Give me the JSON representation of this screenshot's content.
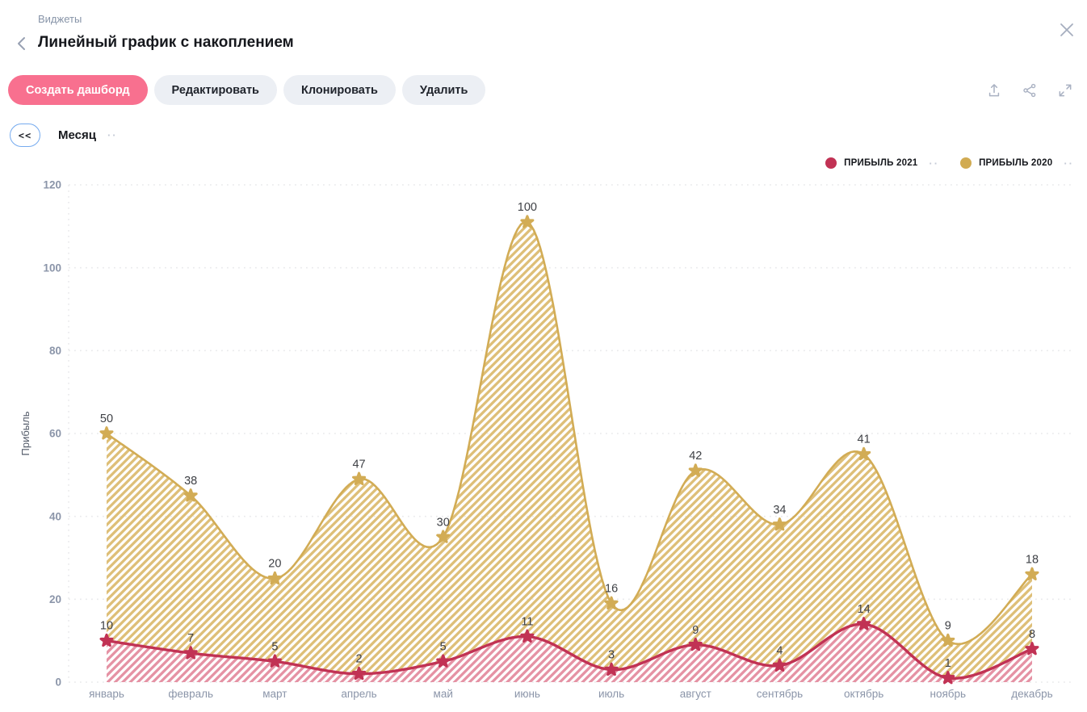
{
  "header": {
    "breadcrumb": "Виджеты",
    "title": "Линейный график с накоплением"
  },
  "toolbar": {
    "create_label": "Создать дашборд",
    "edit_label": "Редактировать",
    "clone_label": "Клонировать",
    "delete_label": "Удалить",
    "accent_color": "#F8708F"
  },
  "filter": {
    "collapse_label": "<<",
    "name": "Месяц",
    "menu_dots": "··"
  },
  "legend": {
    "items": [
      {
        "label": "ПРИБЫЛЬ 2021",
        "color": "#C13254",
        "menu_dots": "··"
      },
      {
        "label": "ПРИБЫЛЬ 2020",
        "color": "#D1AB52",
        "menu_dots": "··"
      }
    ]
  },
  "chart_data": {
    "type": "area",
    "stacked": true,
    "title": "",
    "xlabel": "",
    "ylabel": "Прибыль",
    "categories": [
      "январь",
      "февраль",
      "март",
      "апрель",
      "май",
      "июнь",
      "июль",
      "август",
      "сентябрь",
      "октябрь",
      "ноябрь",
      "декабрь"
    ],
    "series": [
      {
        "name": "ПРИБЫЛЬ 2021",
        "color": "#C13254",
        "hatch_color": "#E592A4",
        "values": [
          10,
          7,
          5,
          2,
          5,
          11,
          3,
          9,
          4,
          14,
          1,
          8
        ]
      },
      {
        "name": "ПРИБЫЛЬ 2020",
        "color": "#D2AC55",
        "hatch_color": "#DEBF78",
        "values": [
          50,
          38,
          20,
          47,
          30,
          100,
          16,
          42,
          34,
          41,
          9,
          18
        ]
      }
    ],
    "stacked_totals_top_series": [
      60,
      45,
      25,
      49,
      35,
      111,
      19,
      51,
      38,
      55,
      10,
      26
    ],
    "y_ticks": [
      0,
      20,
      40,
      60,
      80,
      100,
      120
    ],
    "ylim": [
      0,
      120
    ],
    "grid": "dotted",
    "grid_color": "#E9EAEC",
    "axis_text_color": "#8B95A9",
    "value_label_color": "#3E4045",
    "legend_position": "top-right",
    "marker": "star"
  }
}
